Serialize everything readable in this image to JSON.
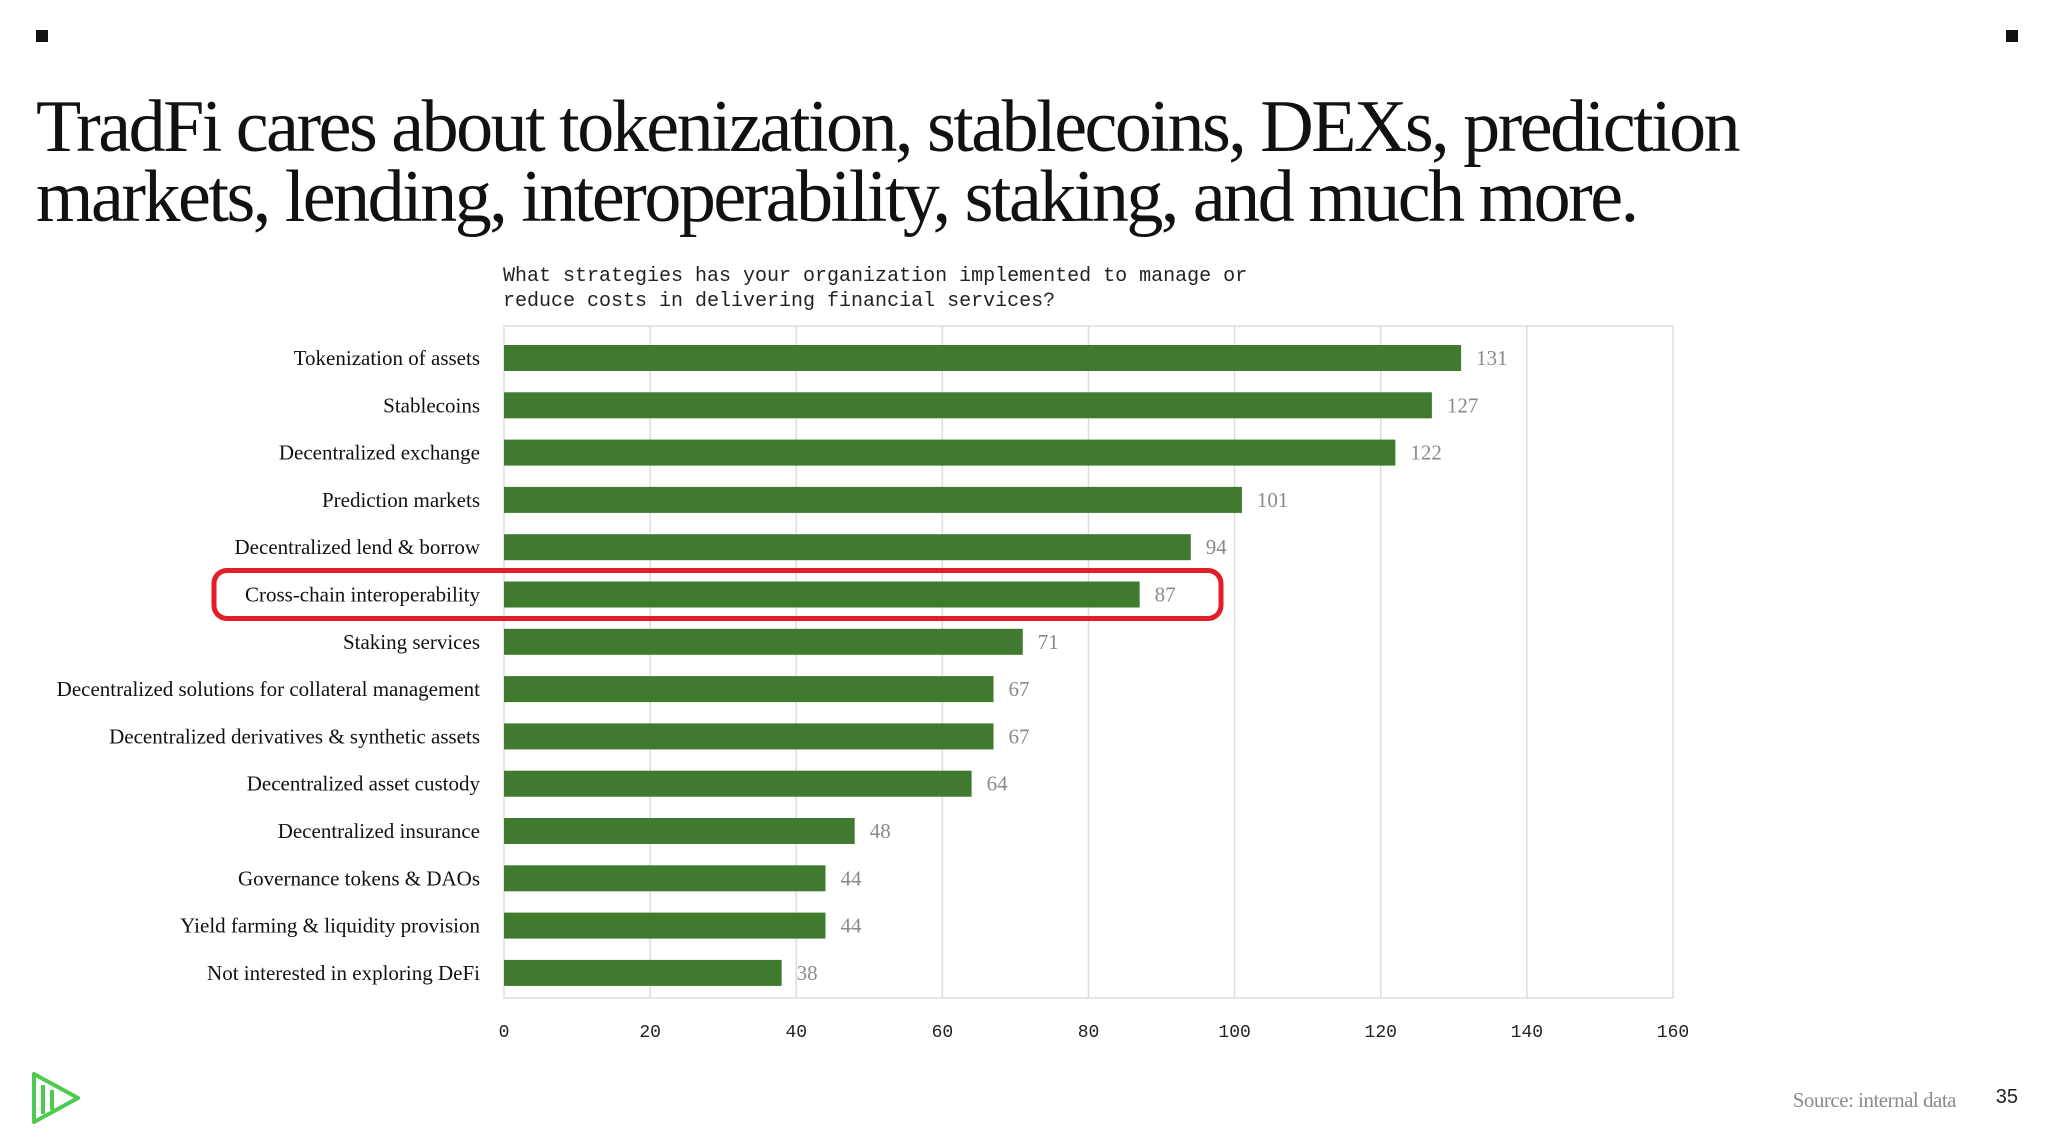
{
  "slide": {
    "headline": "TradFi cares about tokenization, stablecoins, DEXs, prediction markets, lending, interoperability, staking, and much more.",
    "source": "Source: internal data",
    "page_number": "35",
    "logo_icon": "brand-logo-icon"
  },
  "colors": {
    "bar": "#3f7a2e",
    "highlight": "#e41e26",
    "grid": "#dddddd",
    "logo": "#4ccb4c"
  },
  "chart_data": {
    "type": "bar",
    "orientation": "horizontal",
    "title": "What strategies has your organization implemented to manage or\nreduce costs in delivering financial services?",
    "categories": [
      "Tokenization of assets",
      "Stablecoins",
      "Decentralized exchange",
      "Prediction markets",
      "Decentralized lend & borrow",
      "Cross-chain interoperability",
      "Staking services",
      "Decentralized solutions for collateral management",
      "Decentralized derivatives & synthetic assets",
      "Decentralized asset custody",
      "Decentralized insurance",
      "Governance tokens & DAOs",
      "Yield farming & liquidity provision",
      "Not interested in exploring DeFi"
    ],
    "values": [
      131,
      127,
      122,
      101,
      94,
      87,
      71,
      67,
      67,
      64,
      48,
      44,
      44,
      38
    ],
    "xlim": [
      0,
      160
    ],
    "xticks": [
      0,
      20,
      40,
      60,
      80,
      100,
      120,
      140,
      160
    ],
    "grid": true,
    "data_labels": true,
    "highlighted_category": "Cross-chain interoperability"
  }
}
